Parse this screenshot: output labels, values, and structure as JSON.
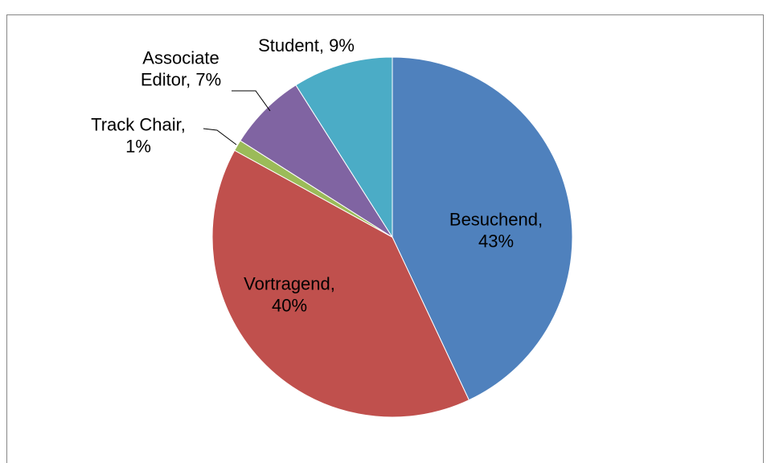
{
  "chart_data": {
    "type": "pie",
    "values": [
      43,
      40,
      1,
      7,
      9
    ],
    "value_labels": [
      [
        "Besuchend,",
        "43%"
      ],
      [
        "Vortragend,",
        "40%"
      ],
      [
        "Track Chair,",
        "1%"
      ],
      [
        "Associate",
        "Editor, 7%"
      ],
      [
        "Student, 9%"
      ]
    ],
    "colors": [
      "#4f81bd",
      "#c0504d",
      "#9bbb59",
      "#8064a2",
      "#4bacc6"
    ]
  }
}
